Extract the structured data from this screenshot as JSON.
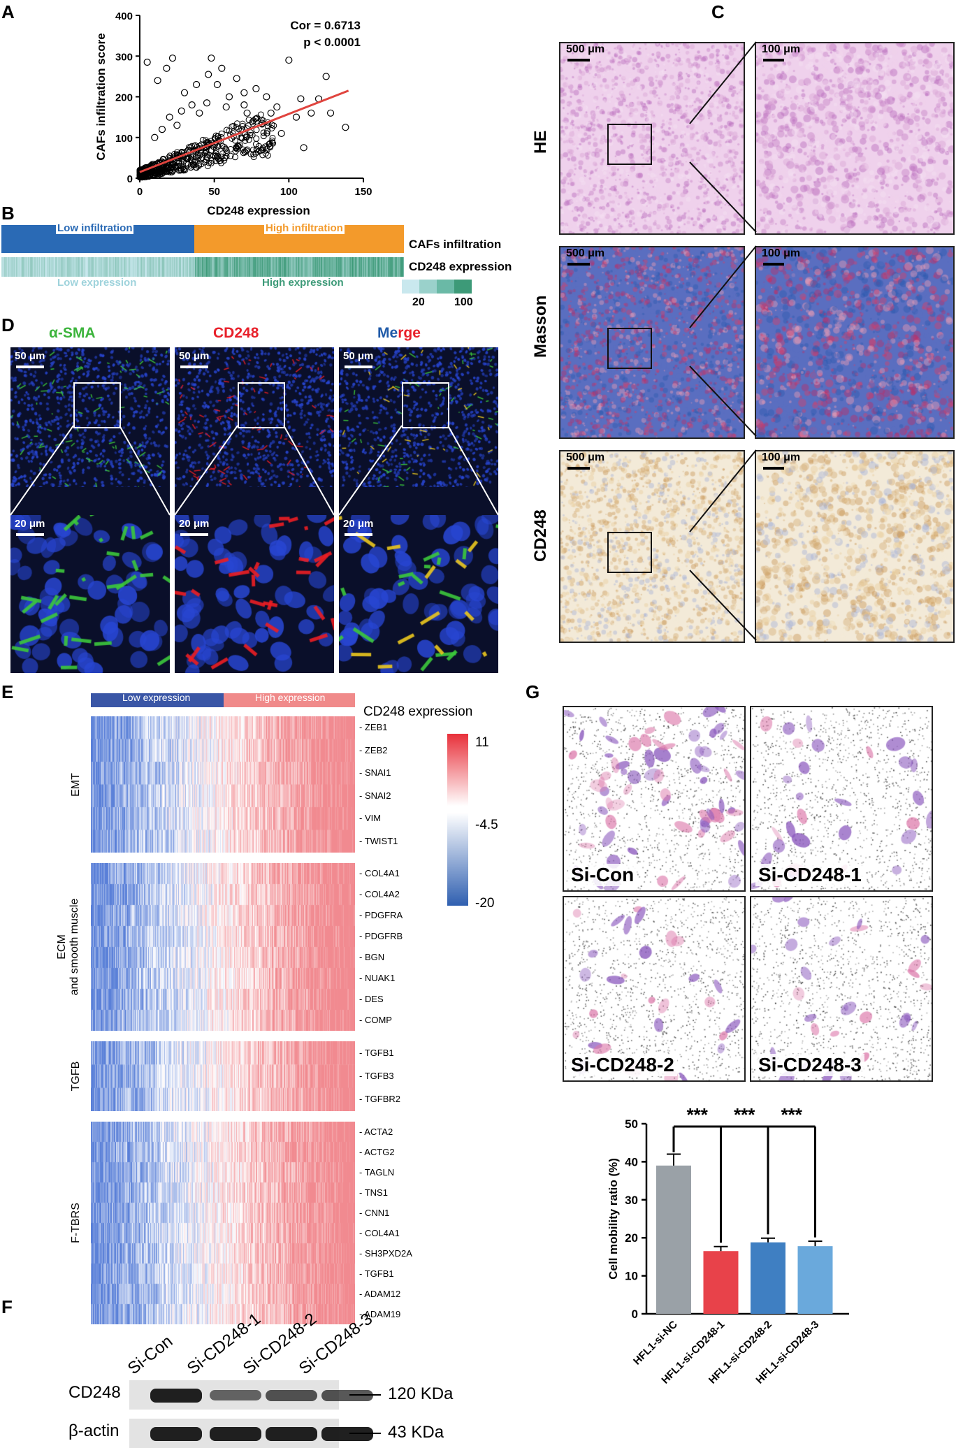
{
  "panels": {
    "a": "A",
    "b": "B",
    "c": "C",
    "d": "D",
    "e": "E",
    "f": "F",
    "g": "G"
  },
  "a": {
    "annotation_cor": "Cor = 0.6713",
    "annotation_p": "p < 0.0001",
    "colors": {
      "fit": "#e0443e",
      "points": "#000000"
    }
  },
  "b": {
    "low_infiltration": "Low infiltration",
    "high_infiltration": "High infiltration",
    "cafs_label": "CAFs infiltration",
    "cd248_label": "CD248 expression",
    "low_expression": "Low expression",
    "high_expression": "High expression",
    "legend_min": "20",
    "legend_max": "100",
    "colors": {
      "low": "#2a6ab5",
      "high": "#f39a2b",
      "expr_low": "#c9e8ee",
      "expr_high": "#3d9a78"
    }
  },
  "c": {
    "rows": [
      "HE",
      "Masson",
      "CD248"
    ],
    "scale_large": "500 μm",
    "scale_small": "100 μm"
  },
  "d": {
    "titles": [
      "α-SMA",
      "CD248",
      "Merge"
    ],
    "merge_parts": [
      "Me",
      "r",
      "ge"
    ],
    "scale_top": "50 μm",
    "scale_bottom": "20 μm",
    "colors": {
      "green": "#3cb43c",
      "red": "#e8202a",
      "blue": "#1f5aa8"
    }
  },
  "e": {
    "low_expression": "Low expression",
    "high_expression": "High expression",
    "header_label": "CD248 expression",
    "scale_max": "11",
    "scale_mid": "-4.5",
    "scale_min": "-20",
    "groups": [
      {
        "name": "EMT",
        "genes": [
          "ZEB1",
          "ZEB2",
          "SNAI1",
          "SNAI2",
          "VIM",
          "TWIST1"
        ]
      },
      {
        "name": "ECM\nand smooth muscle",
        "name_lines": [
          "ECM",
          "and smooth muscle"
        ],
        "genes": [
          "COL4A1",
          "COL4A2",
          "PDGFRA",
          "PDGFRB",
          "BGN",
          "NUAK1",
          "DES",
          "COMP"
        ]
      },
      {
        "name": "TGFB",
        "genes": [
          "TGFB1",
          "TGFB3",
          "TGFBR2"
        ]
      },
      {
        "name": "F-TBRS",
        "genes": [
          "ACTA2",
          "ACTG2",
          "TAGLN",
          "TNS1",
          "CNN1",
          "COL4A1",
          "SH3PXD2A",
          "TGFB1",
          "ADAM12",
          "ADAM19"
        ]
      }
    ]
  },
  "f": {
    "lanes": [
      "Si-Con",
      "Si-CD248-1",
      "Si-CD248-2",
      "Si-CD248-3"
    ],
    "bands": [
      {
        "protein": "CD248",
        "size": "120 KDa"
      },
      {
        "protein": "β-actin",
        "size": "43 KDa"
      }
    ]
  },
  "g": {
    "images": [
      "Si-Con",
      "Si-CD248-1",
      "Si-CD248-2",
      "Si-CD248-3"
    ],
    "significance": "***"
  },
  "chart_data": [
    {
      "type": "scatter",
      "panel": "A",
      "xlabel": "CD248 expression",
      "ylabel": "CAFs infiltration score",
      "xlim": [
        0,
        150
      ],
      "ylim": [
        0,
        400
      ],
      "xticks": [
        0,
        50,
        100,
        150
      ],
      "yticks": [
        0,
        100,
        200,
        300,
        400
      ],
      "fit_line": {
        "x": [
          0,
          140
        ],
        "y": [
          15,
          215
        ]
      },
      "outliers": [
        [
          5,
          285
        ],
        [
          12,
          240
        ],
        [
          18,
          270
        ],
        [
          22,
          295
        ],
        [
          30,
          210
        ],
        [
          38,
          230
        ],
        [
          46,
          255
        ],
        [
          48,
          295
        ],
        [
          52,
          230
        ],
        [
          55,
          270
        ],
        [
          60,
          200
        ],
        [
          65,
          245
        ],
        [
          70,
          210
        ],
        [
          72,
          160
        ],
        [
          78,
          220
        ],
        [
          82,
          135
        ],
        [
          85,
          200
        ],
        [
          100,
          290
        ],
        [
          110,
          75
        ],
        [
          115,
          160
        ],
        [
          125,
          250
        ],
        [
          128,
          160
        ],
        [
          138,
          125
        ],
        [
          92,
          175
        ],
        [
          95,
          110
        ],
        [
          105,
          150
        ],
        [
          120,
          195
        ],
        [
          108,
          195
        ],
        [
          88,
          160
        ],
        [
          70,
          180
        ],
        [
          58,
          175
        ],
        [
          45,
          185
        ],
        [
          40,
          160
        ],
        [
          35,
          180
        ],
        [
          28,
          165
        ],
        [
          20,
          150
        ],
        [
          15,
          120
        ],
        [
          10,
          100
        ],
        [
          25,
          130
        ]
      ]
    },
    {
      "type": "bar",
      "panel": "G",
      "categories": [
        "HFL1-si-NC",
        "HFL1-si-CD248-1",
        "HFL1-si-CD248-2",
        "HFL1-si-CD248-3"
      ],
      "values": [
        39,
        16.5,
        18.8,
        17.8
      ],
      "errors": [
        3,
        1.2,
        1.1,
        1.3
      ],
      "ylabel": "Cell mobility ratio (%)",
      "ylim": [
        0,
        50
      ],
      "yticks": [
        0,
        10,
        20,
        30,
        40,
        50
      ],
      "colors": [
        "#9aa1a7",
        "#e8424a",
        "#3f7fc2",
        "#6aa9dc"
      ]
    }
  ]
}
